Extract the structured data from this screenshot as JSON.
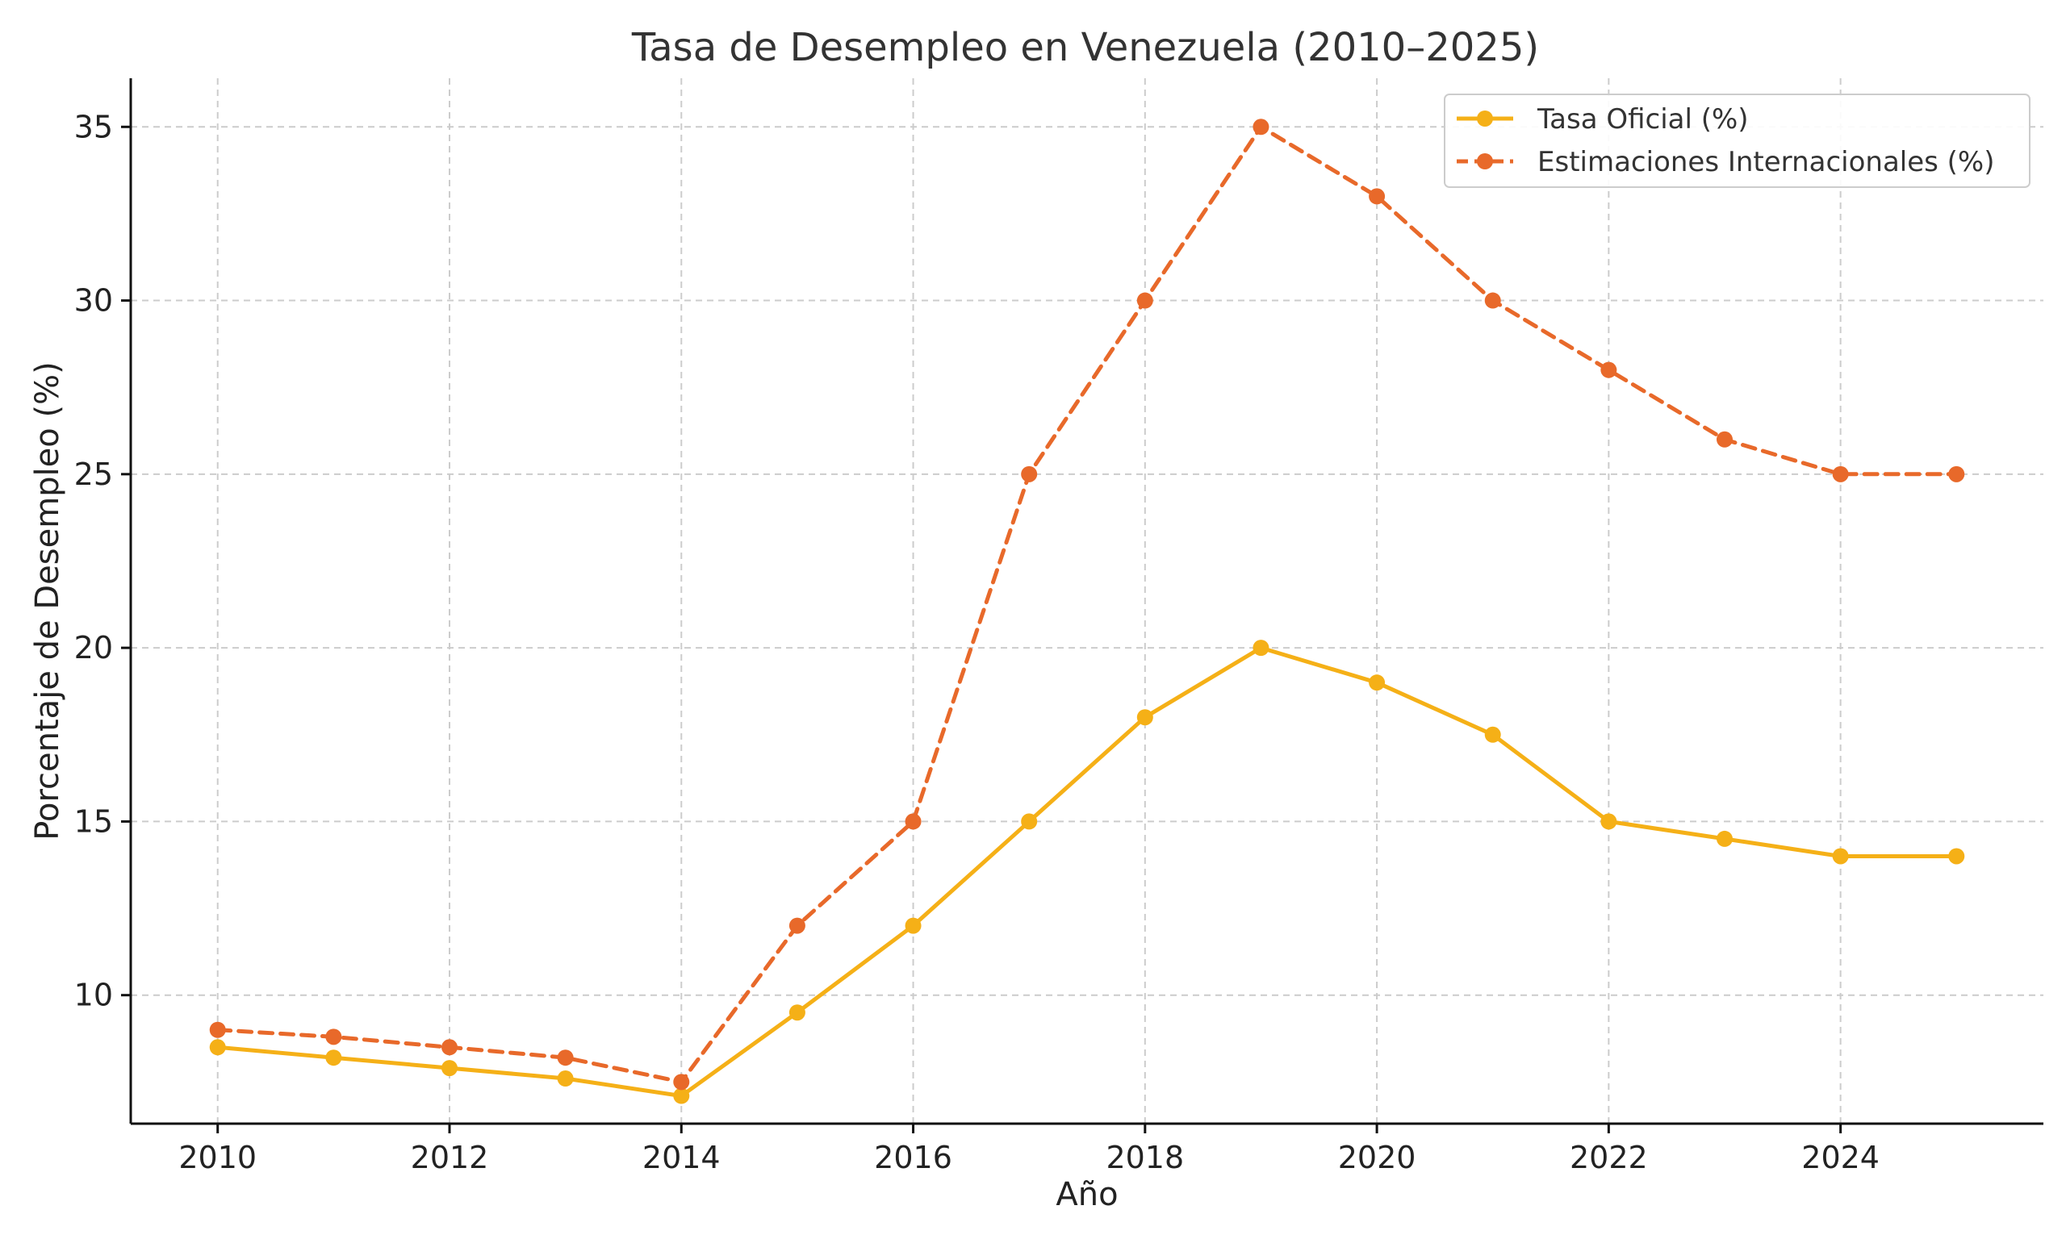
{
  "chart_data": {
    "type": "line",
    "title": "Tasa de Desempleo en Venezuela (2010–2025)",
    "xlabel": "Año",
    "ylabel": "Porcentaje de Desempleo (%)",
    "x": [
      2010,
      2011,
      2012,
      2013,
      2014,
      2015,
      2016,
      2017,
      2018,
      2019,
      2020,
      2021,
      2022,
      2023,
      2024,
      2025
    ],
    "xlim": [
      2009.25,
      2025.75
    ],
    "ylim": [
      6.3,
      36.4
    ],
    "xticks": [
      2010,
      2012,
      2014,
      2016,
      2018,
      2020,
      2022,
      2024
    ],
    "yticks": [
      10,
      15,
      20,
      25,
      30,
      35
    ],
    "grid": true,
    "legend_position": "top-right",
    "series": [
      {
        "name": "Tasa Oficial (%)",
        "color": "#F5B017",
        "line_style": "solid",
        "marker": "circle",
        "values": [
          8.5,
          8.2,
          7.9,
          7.6,
          7.1,
          9.5,
          12.0,
          15.0,
          18.0,
          20.0,
          19.0,
          17.5,
          15.0,
          14.5,
          14.0,
          14.0
        ]
      },
      {
        "name": "Estimaciones Internacionales (%)",
        "color": "#E8692A",
        "line_style": "dashed",
        "marker": "circle",
        "values": [
          9.0,
          8.8,
          8.5,
          8.2,
          7.5,
          12.0,
          15.0,
          25.0,
          30.0,
          35.0,
          33.0,
          30.0,
          28.0,
          26.0,
          25.0,
          25.0
        ]
      }
    ]
  }
}
